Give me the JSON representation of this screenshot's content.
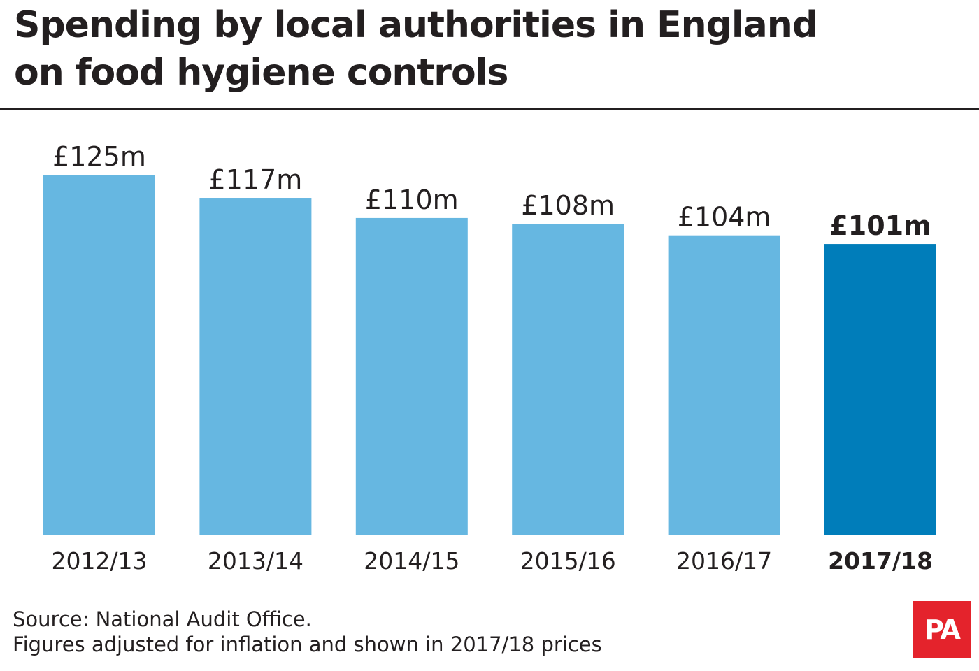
{
  "title_line1": "Spending by local authorities in England",
  "title_line2": "on food hygiene controls",
  "footer": {
    "source": "Source: National Audit Office.",
    "note": "Figures adjusted for inflation and shown in 2017/18 prices"
  },
  "logo_text": "PA",
  "colors": {
    "bar": "#66b7e1",
    "bar_highlight": "#007dba",
    "text": "#231f20",
    "logo": "#e4232c"
  },
  "chart_data": {
    "type": "bar",
    "categories": [
      "2012/13",
      "2013/14",
      "2014/15",
      "2015/16",
      "2016/17",
      "2017/18"
    ],
    "values": [
      125,
      117,
      110,
      108,
      104,
      101
    ],
    "value_labels": [
      "£125m",
      "£117m",
      "£110m",
      "£108m",
      "£104m",
      "£101m"
    ],
    "highlight_index": 5,
    "unit": "£m",
    "ylim": [
      0,
      125
    ],
    "grid": false,
    "legend": "none"
  }
}
